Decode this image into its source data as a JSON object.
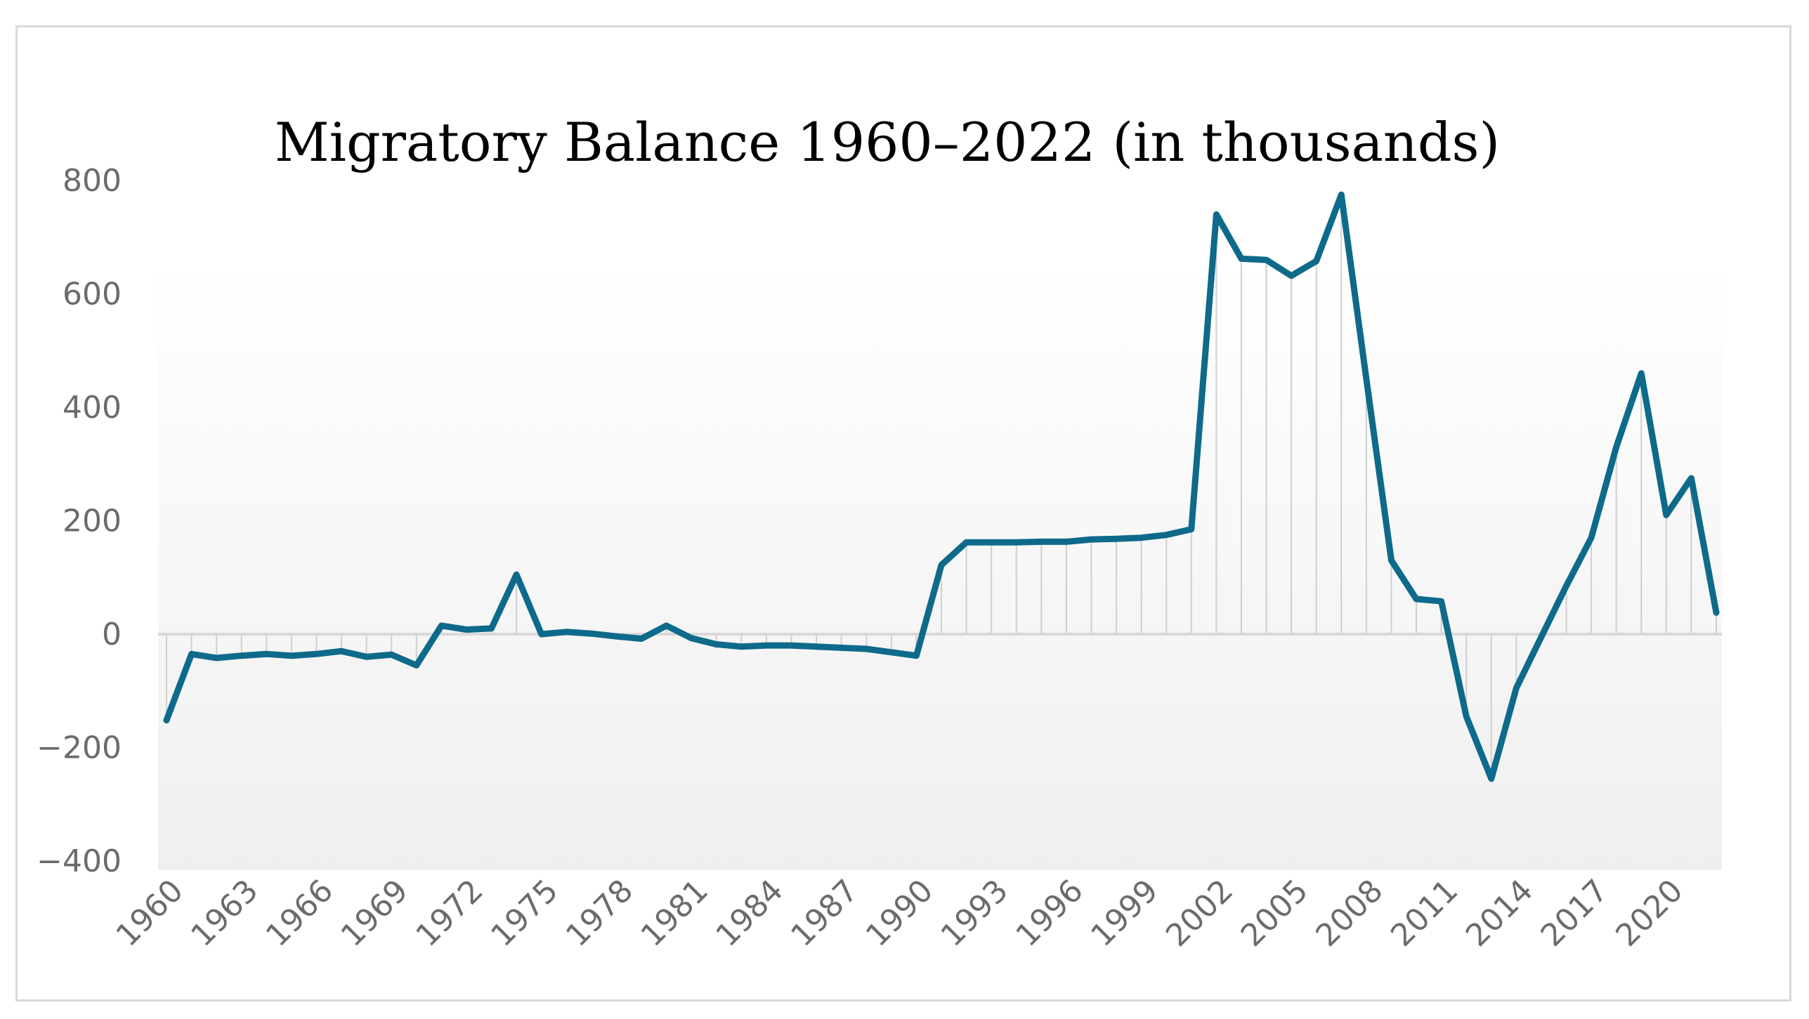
{
  "chart_data": {
    "type": "line",
    "title": "Migratory Balance 1960–2022 (in thousands)",
    "xlabel": "",
    "ylabel": "",
    "ylim": [
      -400,
      800
    ],
    "yticks": [
      800,
      600,
      400,
      200,
      0,
      -200,
      -400
    ],
    "ytick_labels": [
      "800",
      "600",
      "400",
      "200",
      "0",
      "−200",
      "−400"
    ],
    "xtick_labels": [
      "1960",
      "1963",
      "1966",
      "1969",
      "1972",
      "1975",
      "1978",
      "1981",
      "1984",
      "1987",
      "1990",
      "1993",
      "1996",
      "1999",
      "2002",
      "2005",
      "2008",
      "2011",
      "2014",
      "2017",
      "2020"
    ],
    "grid": "vertical drop lines to zero",
    "series": [
      {
        "name": "Migratory balance",
        "color": "#0e6a8a",
        "x": [
          1960,
          1961,
          1962,
          1963,
          1964,
          1965,
          1966,
          1967,
          1968,
          1969,
          1970,
          1971,
          1972,
          1973,
          1974,
          1975,
          1976,
          1977,
          1978,
          1979,
          1980,
          1981,
          1982,
          1983,
          1984,
          1985,
          1986,
          1987,
          1988,
          1989,
          1990,
          1991,
          1992,
          1993,
          1994,
          1995,
          1996,
          1997,
          1998,
          1999,
          2000,
          2001,
          2002,
          2003,
          2004,
          2005,
          2006,
          2007,
          2008,
          2009,
          2010,
          2011,
          2012,
          2013,
          2014,
          2015,
          2016,
          2017,
          2018,
          2019,
          2020,
          2021,
          2022
        ],
        "values": [
          -152,
          -35,
          -42,
          -38,
          -35,
          -38,
          -35,
          -30,
          -40,
          -36,
          -55,
          15,
          8,
          10,
          105,
          0,
          4,
          1,
          -4,
          -8,
          15,
          -7,
          -18,
          -22,
          -20,
          -20,
          -22,
          -24,
          -26,
          -32,
          -38,
          122,
          162,
          162,
          162,
          163,
          163,
          167,
          168,
          170,
          175,
          185,
          740,
          662,
          660,
          632,
          658,
          775,
          450,
          130,
          62,
          58,
          -145,
          -255,
          -95,
          -5,
          85,
          170,
          330,
          460,
          210,
          275,
          38
        ]
      }
    ]
  }
}
